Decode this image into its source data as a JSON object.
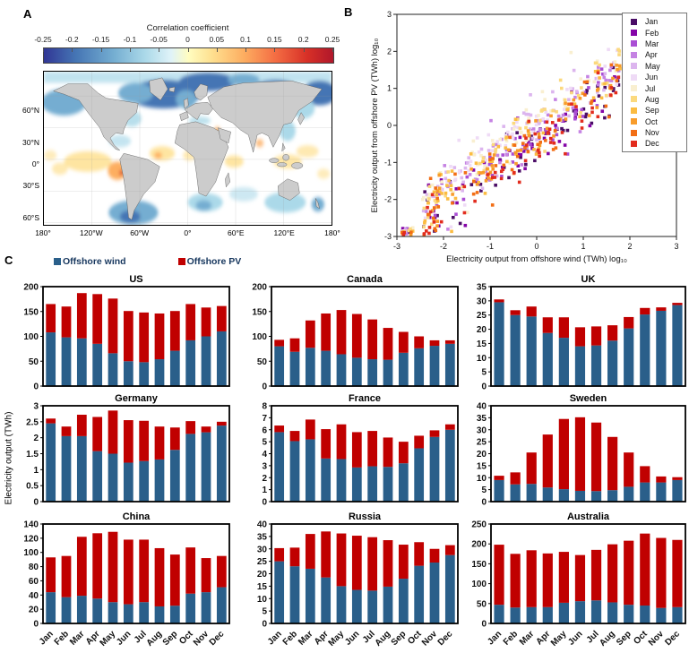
{
  "panels": {
    "a_label": "A",
    "b_label": "B",
    "c_label": "C"
  },
  "months": [
    "Jan",
    "Feb",
    "Mar",
    "Apr",
    "May",
    "Jun",
    "Jul",
    "Aug",
    "Sep",
    "Oct",
    "Nov",
    "Dec"
  ],
  "panel_a": {
    "colorbar": {
      "title": "Correlation coefficient",
      "ticks": [
        "-0.25",
        "-0.2",
        "-0.15",
        "-0.1",
        "-0.05",
        "0",
        "0.05",
        "0.1",
        "0.15",
        "0.2",
        "0.25"
      ]
    },
    "map": {
      "lat_labels": [
        "60°N",
        "30°N",
        "0°",
        "30°S",
        "60°S"
      ],
      "lon_labels": [
        "180°",
        "120°W",
        "60°W",
        "0°",
        "60°E",
        "120°E",
        "180°"
      ],
      "land_color": "#cccccc",
      "ocean_color": "#ffffff"
    }
  },
  "chart_data": [
    {
      "id": "map-correlation",
      "type": "heatmap",
      "title": "Correlation coefficient",
      "colorbar_ticks": [
        -0.25,
        -0.2,
        -0.15,
        -0.1,
        -0.05,
        0,
        0.05,
        0.1,
        0.15,
        0.2,
        0.25
      ],
      "colorbar_colors": [
        "#313695",
        "#4575b4",
        "#74add1",
        "#abd9e9",
        "#e0f3f8",
        "#fffdc0",
        "#fee090",
        "#fdae61",
        "#f46d43",
        "#d73027",
        "#b0172b"
      ],
      "lat_ticks": [
        "60°N",
        "30°N",
        "0°",
        "30°S",
        "60°S"
      ],
      "lon_ticks": [
        "180°",
        "120°W",
        "60°W",
        "0°",
        "60°E",
        "120°E",
        "180°"
      ],
      "summary": "Negative (blue) wind-PV correlation in high-latitude coastal oceans; weak positive (yellow-orange) patches in tropical oceans"
    },
    {
      "id": "scatter-wind-pv",
      "type": "scatter",
      "xlabel": "Electricity output from offshore wind (TWh) log₁₀",
      "ylabel": "Electricity output from offshore PV (TWh) log₁₀",
      "xlim": [
        -3,
        3
      ],
      "ylim": [
        -3,
        3
      ],
      "xticks": [
        -3,
        -2,
        -1,
        0,
        1,
        2,
        3
      ],
      "yticks": [
        -3,
        -2,
        -1,
        0,
        1,
        2,
        3
      ],
      "legend_position": "top-right",
      "series": [
        {
          "name": "Jan",
          "color": "#4a0d66"
        },
        {
          "name": "Feb",
          "color": "#8405a7"
        },
        {
          "name": "Mar",
          "color": "#aa4fd4"
        },
        {
          "name": "Apr",
          "color": "#c583e3"
        },
        {
          "name": "May",
          "color": "#dcb5ee"
        },
        {
          "name": "Jun",
          "color": "#efdbf6"
        },
        {
          "name": "Jul",
          "color": "#f9efd0"
        },
        {
          "name": "Aug",
          "color": "#fbd97e"
        },
        {
          "name": "Sep",
          "color": "#fbbc42"
        },
        {
          "name": "Oct",
          "color": "#f89c2b"
        },
        {
          "name": "Nov",
          "color": "#f26e15"
        },
        {
          "name": "Dec",
          "color": "#e22c1e"
        }
      ],
      "generator": {
        "seed": 7,
        "n_per_month": 52,
        "slope": 0.88,
        "intercept": -0.12,
        "noise_sd": 0.32,
        "seasonal_amp": 0.32,
        "x_min": -2.45,
        "x_span": 4.25,
        "outlier_prob": 0.06,
        "outlier_drop": 0.9,
        "corner_cluster": {
          "x": -2.9,
          "y": -2.87,
          "per_month": 2,
          "x_jitter": 0.25,
          "y_sd": 0.06
        },
        "clamp_y": [
          -2.95,
          2.05
        ]
      }
    },
    {
      "id": "bars",
      "type": "stacked_bar_grid",
      "series_meta": [
        {
          "name": "Offshore wind",
          "color": "#2a5f8a"
        },
        {
          "name": "Offshore PV",
          "color": "#c00000"
        }
      ],
      "shared_ylabel": "Electricity output (TWh)",
      "charts": [
        {
          "title": "US",
          "ymax": 200,
          "ystep": 50,
          "wind": [
            108,
            98,
            96,
            85,
            66,
            50,
            48,
            54,
            71,
            92,
            100,
            110
          ],
          "pv": [
            57,
            62,
            91,
            100,
            110,
            101,
            100,
            92,
            80,
            73,
            58,
            51
          ]
        },
        {
          "title": "Canada",
          "ymax": 200,
          "ystep": 50,
          "wind": [
            80,
            69,
            77,
            71,
            64,
            57,
            54,
            53,
            67,
            76,
            81,
            85
          ],
          "pv": [
            13,
            27,
            55,
            75,
            89,
            88,
            80,
            64,
            42,
            24,
            11,
            7
          ]
        },
        {
          "title": "UK",
          "ymax": 35,
          "ystep": 5,
          "wind": [
            29.5,
            25,
            24.5,
            18.7,
            17,
            14,
            14.3,
            16,
            20.3,
            25.2,
            26.5,
            28.5
          ],
          "pv": [
            1,
            1.7,
            3.5,
            5.5,
            7.2,
            6.7,
            6.7,
            5.4,
            4,
            2.3,
            1.2,
            0.8
          ]
        },
        {
          "title": "Germany",
          "ymax": 3,
          "ystep": 0.5,
          "wind": [
            2.45,
            2.05,
            2.05,
            1.58,
            1.5,
            1.22,
            1.27,
            1.32,
            1.62,
            2.12,
            2.17,
            2.38
          ],
          "pv": [
            0.15,
            0.3,
            0.67,
            1.07,
            1.35,
            1.33,
            1.26,
            1.03,
            0.7,
            0.4,
            0.18,
            0.12
          ]
        },
        {
          "title": "France",
          "ymax": 8,
          "ystep": 1,
          "wind": [
            5.8,
            5.05,
            5.2,
            3.6,
            3.55,
            2.85,
            2.95,
            2.9,
            3.2,
            4.45,
            5.4,
            6.0
          ],
          "pv": [
            0.55,
            0.85,
            1.65,
            2.45,
            2.9,
            2.95,
            2.95,
            2.45,
            1.8,
            1.05,
            0.55,
            0.45
          ]
        },
        {
          "title": "Sweden",
          "ymax": 40,
          "ystep": 5,
          "wind": [
            9,
            7.2,
            7.4,
            5.9,
            5.2,
            4.5,
            4.4,
            4.8,
            6.2,
            8,
            8,
            9
          ],
          "pv": [
            1.8,
            5,
            13.1,
            22.1,
            29.3,
            30.7,
            28.6,
            22.2,
            14.3,
            6.8,
            2.5,
            1.2
          ]
        },
        {
          "title": "China",
          "ymax": 140,
          "ystep": 20,
          "wind": [
            44,
            37,
            39,
            35,
            30,
            27,
            30,
            24,
            25,
            42,
            44,
            51
          ],
          "pv": [
            49,
            58,
            83,
            92,
            99,
            91,
            88,
            82,
            72,
            65,
            48,
            44
          ]
        },
        {
          "title": "Russia",
          "ymax": 40,
          "ystep": 5,
          "wind": [
            25,
            23,
            22,
            18.5,
            15,
            13.5,
            13.2,
            14.8,
            18,
            23.2,
            24.5,
            27.5
          ],
          "pv": [
            5.3,
            7.5,
            14,
            18.5,
            21.2,
            21.8,
            21.5,
            18.7,
            13.7,
            9.5,
            5.5,
            4
          ]
        },
        {
          "title": "Australia",
          "ymax": 250,
          "ystep": 50,
          "wind": [
            47,
            40,
            41,
            41,
            52,
            56,
            58,
            53,
            47,
            45,
            39,
            41
          ],
          "pv": [
            151,
            135,
            143,
            135,
            128,
            116,
            127,
            146,
            161,
            181,
            176,
            169
          ]
        }
      ]
    }
  ]
}
